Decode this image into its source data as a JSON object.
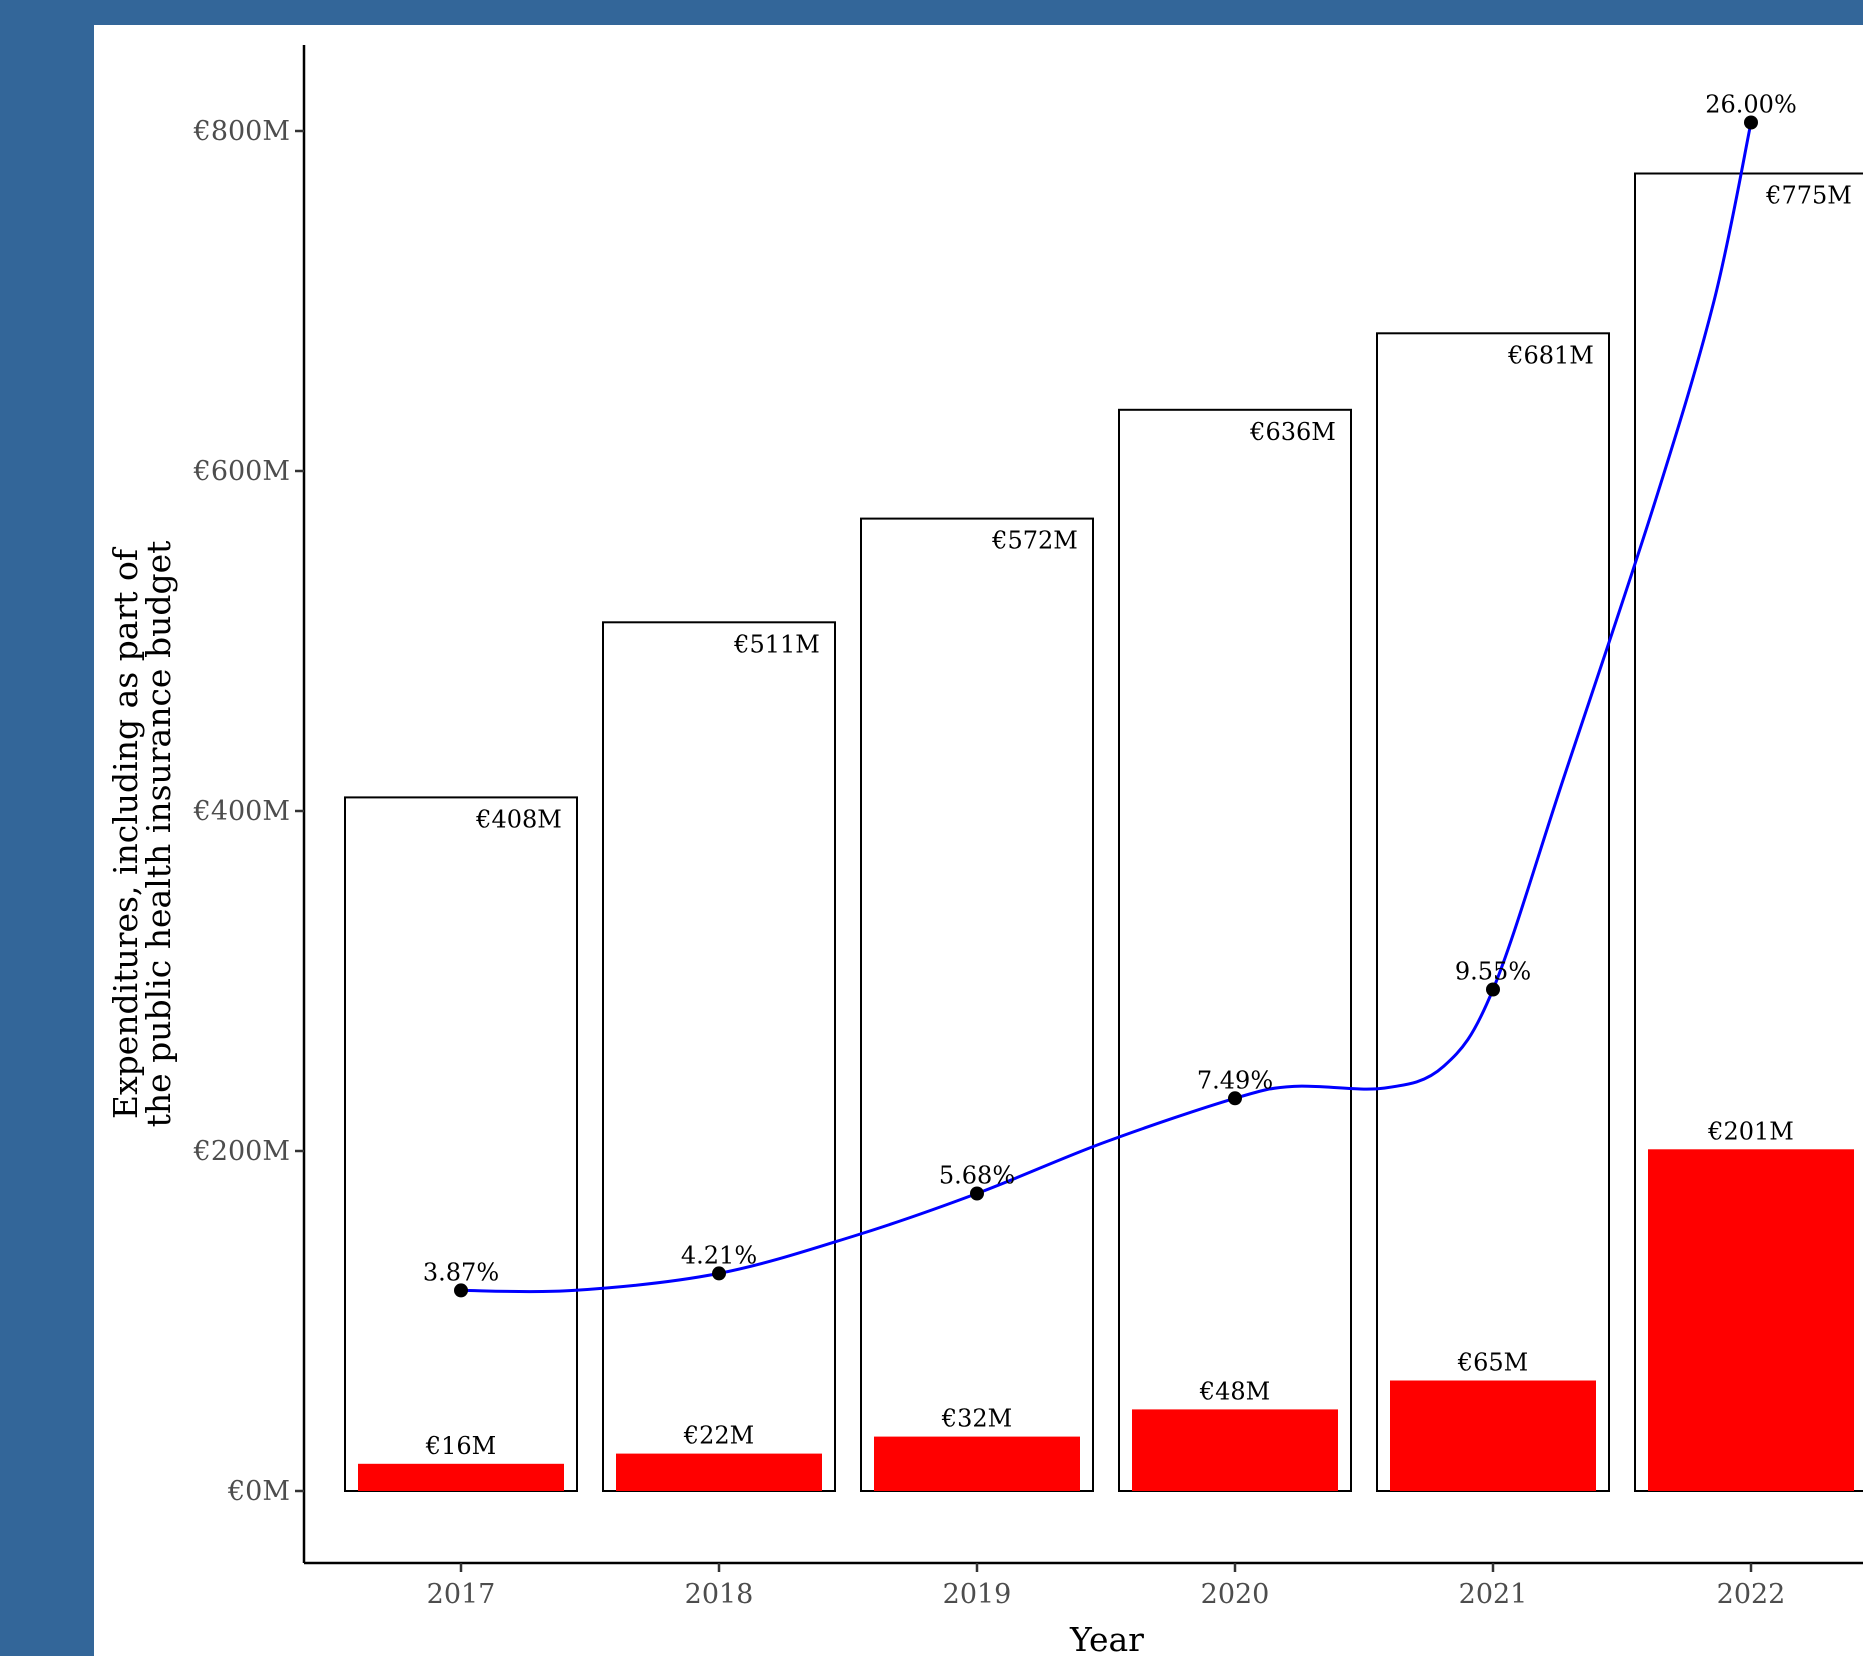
{
  "chart_data": {
    "type": "bar",
    "title": "",
    "xlabel": "Year",
    "ylabel_lines": [
      "Expenditures, including as part of",
      "the public health insurance budget"
    ],
    "categories": [
      "2017",
      "2018",
      "2019",
      "2020",
      "2021",
      "2022"
    ],
    "series": [
      {
        "values": [
          408,
          511,
          572,
          636,
          681,
          775
        ],
        "labels": [
          "€408M",
          "€511M",
          "€572M",
          "€636M",
          "€681M",
          "€775M"
        ],
        "fill": "#ffffff",
        "stroke": "#000000"
      },
      {
        "values": [
          16,
          22,
          32,
          48,
          65,
          201
        ],
        "labels": [
          "€16M",
          "€22M",
          "€32M",
          "€48M",
          "€65M",
          "€201M"
        ],
        "fill": "#ff0000"
      }
    ],
    "line": {
      "percent_values": [
        3.87,
        4.21,
        5.68,
        7.49,
        9.55,
        26.0
      ],
      "y_positions": [
        118,
        128,
        175,
        231,
        295,
        805
      ],
      "labels": [
        "3.87%",
        "4.21%",
        "5.68%",
        "7.49%",
        "9.55%",
        "26.00%"
      ],
      "color": "#0000ff",
      "point_color": "#000000"
    },
    "yticks": [
      0,
      200,
      400,
      600,
      800
    ],
    "ytick_labels": [
      "€0M",
      "€200M",
      "€400M",
      "€600M",
      "€800M"
    ],
    "ylim": [
      -40,
      845
    ],
    "grid": false
  }
}
